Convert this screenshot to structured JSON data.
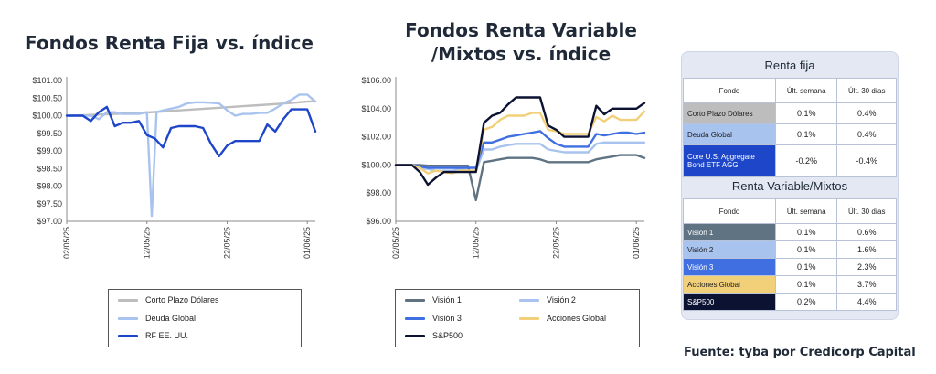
{
  "charts": {
    "fixed": {
      "title": "Fondos Renta Fija vs. índice",
      "legend_names": [
        "Corto Plazo Dólares",
        "Deuda Global",
        "RF EE. UU."
      ]
    },
    "variable": {
      "title_line1": "Fondos Renta Variable",
      "title_line2": "/Mixtos vs. índice",
      "legend_names": [
        "Visión 1",
        "Visión 2",
        "Visión 3",
        "Acciones Global",
        "S&P500"
      ]
    }
  },
  "chart_data": [
    {
      "type": "line",
      "title": "Fondos Renta Fija vs. índice",
      "ylim": [
        97.0,
        101.0
      ],
      "yticks": [
        "$97.00",
        "$97.50",
        "$98.00",
        "$98.50",
        "$99.00",
        "$99.50",
        "$100.00",
        "$100.50",
        "$101.00"
      ],
      "ytick_values": [
        97.0,
        97.5,
        98.0,
        98.5,
        99.0,
        99.5,
        100.0,
        100.5,
        101.0
      ],
      "xlim": [
        0,
        30
      ],
      "xticks": [
        "02/05/25",
        "12/05/25",
        "22/05/25",
        "01/06/25"
      ],
      "xtick_positions": [
        0,
        10,
        20,
        30
      ],
      "grid": false,
      "legend_position": "bottom",
      "series": [
        {
          "name": "Corto Plazo Dólares",
          "color": "#bdbdbd",
          "x": [
            0,
            2,
            4,
            6,
            8,
            10,
            12,
            14,
            16,
            18,
            20,
            22,
            24,
            26,
            28,
            30,
            31
          ],
          "y": [
            100.0,
            100.01,
            100.03,
            100.05,
            100.07,
            100.09,
            100.12,
            100.15,
            100.18,
            100.21,
            100.24,
            100.27,
            100.3,
            100.33,
            100.36,
            100.4,
            100.41
          ]
        },
        {
          "name": "Deuda Global",
          "color": "#a9c3ef",
          "x": [
            0,
            1,
            2,
            3,
            4,
            5,
            6,
            7,
            8,
            9,
            10,
            10.6,
            11.2,
            12,
            13,
            14,
            15,
            16,
            17,
            18,
            19,
            20,
            21,
            22,
            23,
            24,
            25,
            26,
            27,
            28,
            29,
            30,
            31
          ],
          "y": [
            100.0,
            100.0,
            100.0,
            100.0,
            99.9,
            100.1,
            100.1,
            100.05,
            100.05,
            100.05,
            100.1,
            97.15,
            100.1,
            100.15,
            100.2,
            100.25,
            100.35,
            100.38,
            100.38,
            100.37,
            100.35,
            100.15,
            100.0,
            100.05,
            100.05,
            100.08,
            100.08,
            100.2,
            100.35,
            100.45,
            100.6,
            100.6,
            100.4
          ]
        },
        {
          "name": "RF EE. UU.",
          "color": "#1d46c9",
          "x": [
            0,
            1,
            2,
            3,
            4,
            5,
            6,
            7,
            8,
            9,
            10,
            11,
            12,
            13,
            14,
            15,
            16,
            17,
            18,
            19,
            20,
            21,
            22,
            23,
            24,
            25,
            26,
            27,
            28,
            29,
            30,
            31
          ],
          "y": [
            100.0,
            100.0,
            100.0,
            99.85,
            100.1,
            100.25,
            99.7,
            99.8,
            99.8,
            99.85,
            99.45,
            99.35,
            99.1,
            99.65,
            99.7,
            99.7,
            99.7,
            99.65,
            99.2,
            98.85,
            99.15,
            99.28,
            99.28,
            99.28,
            99.28,
            99.75,
            99.55,
            99.9,
            100.18,
            100.18,
            100.18,
            99.55
          ]
        }
      ]
    },
    {
      "type": "line",
      "title": "Fondos Renta Variable /Mixtos vs. índice",
      "ylim": [
        96.0,
        106.0
      ],
      "yticks": [
        "$96.00",
        "$98.00",
        "$100.00",
        "$102.00",
        "$104.00",
        "$106.00"
      ],
      "ytick_values": [
        96.0,
        98.0,
        100.0,
        102.0,
        104.0,
        106.0
      ],
      "xlim": [
        0,
        30
      ],
      "xticks": [
        "02/05/25",
        "12/05/25",
        "22/05/25",
        "01/06/25"
      ],
      "xtick_positions": [
        0,
        10,
        20,
        30
      ],
      "grid": false,
      "legend_position": "bottom",
      "series": [
        {
          "name": "Visión 1",
          "color": "#5f7383",
          "x": [
            0,
            1,
            2,
            3,
            4,
            5,
            6,
            7,
            8,
            9,
            10,
            11,
            12,
            13,
            14,
            15,
            16,
            17,
            18,
            19,
            20,
            21,
            22,
            23,
            24,
            25,
            26,
            27,
            28,
            29,
            30,
            31
          ],
          "y": [
            100.0,
            100.0,
            100.0,
            100.0,
            99.95,
            99.95,
            99.95,
            99.95,
            99.95,
            99.95,
            97.5,
            100.2,
            100.3,
            100.4,
            100.5,
            100.5,
            100.5,
            100.5,
            100.4,
            100.2,
            100.2,
            100.2,
            100.2,
            100.2,
            100.2,
            100.4,
            100.5,
            100.6,
            100.7,
            100.7,
            100.7,
            100.5
          ]
        },
        {
          "name": "Visión 2",
          "color": "#a9c3ef",
          "x": [
            0,
            1,
            2,
            3,
            4,
            5,
            6,
            7,
            8,
            9,
            10,
            11,
            12,
            13,
            14,
            15,
            16,
            17,
            18,
            19,
            20,
            21,
            22,
            23,
            24,
            25,
            26,
            27,
            28,
            29,
            30,
            31
          ],
          "y": [
            100.0,
            100.0,
            100.0,
            99.8,
            99.7,
            99.6,
            99.6,
            99.6,
            99.7,
            99.6,
            99.6,
            101.1,
            101.1,
            101.3,
            101.4,
            101.5,
            101.5,
            101.5,
            101.5,
            101.1,
            101.0,
            100.9,
            100.9,
            100.9,
            100.9,
            101.5,
            101.6,
            101.6,
            101.6,
            101.6,
            101.6,
            101.6
          ]
        },
        {
          "name": "Visión 3",
          "color": "#3f6fe0",
          "x": [
            0,
            1,
            2,
            3,
            4,
            5,
            6,
            7,
            8,
            9,
            10,
            11,
            12,
            13,
            14,
            15,
            16,
            17,
            18,
            19,
            20,
            21,
            22,
            23,
            24,
            25,
            26,
            27,
            28,
            29,
            30,
            31
          ],
          "y": [
            100.0,
            100.0,
            100.0,
            99.9,
            99.8,
            99.8,
            99.8,
            99.8,
            99.8,
            99.8,
            99.8,
            101.6,
            101.6,
            101.8,
            102.0,
            102.1,
            102.2,
            102.3,
            102.4,
            101.9,
            101.5,
            101.3,
            101.3,
            101.3,
            101.3,
            102.2,
            102.1,
            102.2,
            102.3,
            102.3,
            102.2,
            102.3
          ]
        },
        {
          "name": "Acciones Global",
          "color": "#f2d07a",
          "x": [
            0,
            1,
            2,
            3,
            4,
            5,
            6,
            7,
            8,
            9,
            10,
            11,
            12,
            13,
            14,
            15,
            16,
            17,
            18,
            19,
            20,
            21,
            22,
            23,
            24,
            25,
            26,
            27,
            28,
            29,
            30,
            31
          ],
          "y": [
            100.0,
            100.0,
            100.0,
            99.8,
            99.4,
            99.6,
            99.5,
            99.4,
            99.6,
            99.6,
            99.6,
            102.5,
            102.7,
            103.2,
            103.5,
            103.5,
            103.5,
            103.7,
            103.7,
            102.5,
            102.4,
            102.2,
            102.2,
            102.2,
            102.2,
            103.4,
            103.1,
            103.5,
            103.2,
            103.2,
            103.2,
            103.8
          ]
        },
        {
          "name": "S&P500",
          "color": "#0c1232",
          "x": [
            0,
            1,
            2,
            3,
            4,
            5,
            6,
            7,
            8,
            9,
            10,
            11,
            12,
            13,
            14,
            15,
            16,
            17,
            18,
            19,
            20,
            21,
            22,
            23,
            24,
            25,
            26,
            27,
            28,
            29,
            30,
            31
          ],
          "y": [
            100.0,
            100.0,
            100.0,
            99.5,
            98.6,
            99.1,
            99.5,
            99.5,
            99.5,
            99.5,
            99.5,
            103.0,
            103.5,
            103.7,
            104.3,
            104.8,
            104.8,
            104.8,
            104.8,
            102.8,
            102.5,
            102.0,
            102.0,
            102.0,
            102.0,
            104.2,
            103.6,
            104.0,
            104.0,
            104.0,
            104.0,
            104.4
          ]
        }
      ]
    }
  ],
  "tables": {
    "fixed": {
      "title": "Renta fija",
      "headers": [
        "Fondo",
        "Últ. semana",
        "Últ. 30 días"
      ],
      "rows": [
        {
          "fund": "Corto Plazo Dólares",
          "week": "0.1%",
          "month": "0.4%",
          "color": "#bdbdbd"
        },
        {
          "fund": "Deuda Global",
          "week": "0.1%",
          "month": "0.4%",
          "color": "#a9c3ef"
        },
        {
          "fund": "Core U.S. Aggregate Bond ETF AGG",
          "week": "-0.2%",
          "month": "-0.4%",
          "color": "#1d46c9"
        }
      ]
    },
    "variable": {
      "title": "Renta Variable/Mixtos",
      "headers": [
        "Fondo",
        "Últ. semana",
        "Últ. 30 días"
      ],
      "rows": [
        {
          "fund": "Visión 1",
          "week": "0.1%",
          "month": "0.6%",
          "color": "#5f7383"
        },
        {
          "fund": "Visión 2",
          "week": "0.1%",
          "month": "1.6%",
          "color": "#a9c3ef"
        },
        {
          "fund": "Visión 3",
          "week": "0.1%",
          "month": "2.3%",
          "color": "#3f6fe0"
        },
        {
          "fund": "Acciones Global",
          "week": "0.1%",
          "month": "3.7%",
          "color": "#f2d07a"
        },
        {
          "fund": "S&P500",
          "week": "0.2%",
          "month": "4.4%",
          "color": "#0c1232"
        }
      ]
    }
  },
  "source": "Fuente: tyba por Credicorp Capital"
}
